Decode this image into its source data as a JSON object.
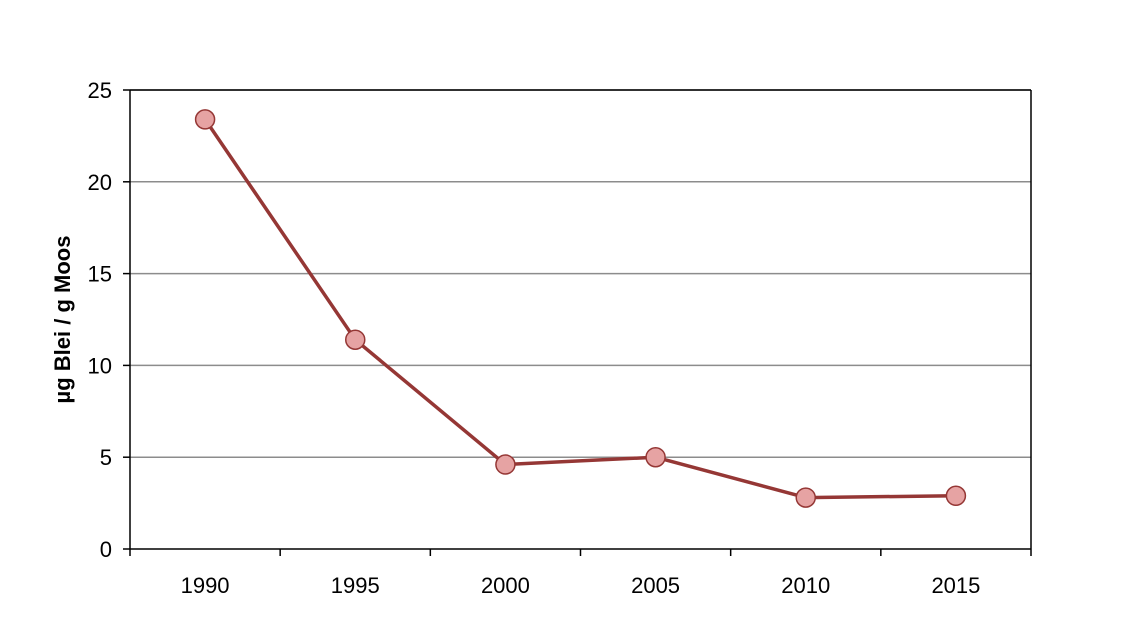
{
  "chart_data": {
    "type": "line",
    "title": "",
    "xlabel": "",
    "ylabel": "µg Blei / g Moos",
    "categories": [
      "1990",
      "1995",
      "2000",
      "2005",
      "2010",
      "2015"
    ],
    "series": [
      {
        "values": [
          23.4,
          11.4,
          4.6,
          5.0,
          2.8,
          2.9
        ]
      }
    ],
    "ylim": [
      0,
      25
    ],
    "yticks": [
      0,
      5,
      10,
      15,
      20,
      25
    ],
    "grid": true,
    "legend": "none",
    "colors": {
      "line": "#953735",
      "marker_fill": "#e6a3a3",
      "marker_stroke": "#953735",
      "grid": "#8c8c8c",
      "axis": "#000000"
    }
  }
}
